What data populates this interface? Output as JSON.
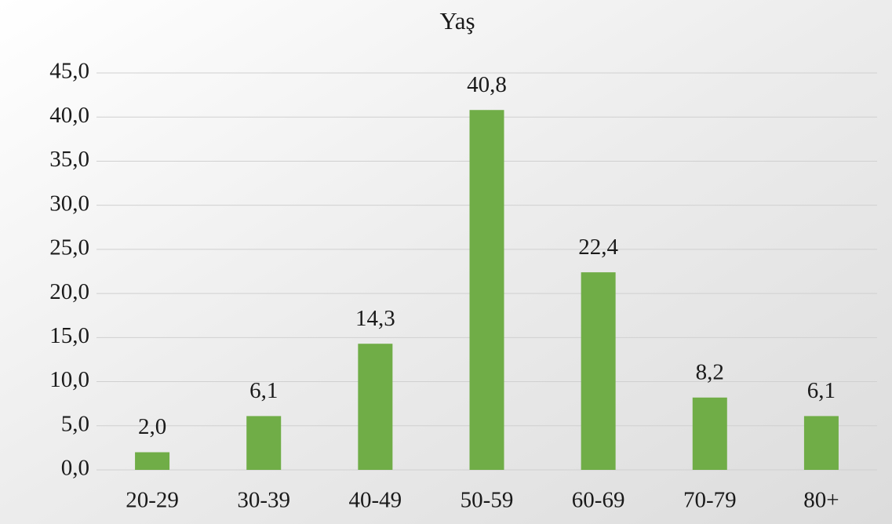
{
  "chart_data": {
    "type": "bar",
    "title": "Yaş",
    "categories": [
      "20-29",
      "30-39",
      "40-49",
      "50-59",
      "60-69",
      "70-79",
      "80+"
    ],
    "values": [
      2.0,
      6.1,
      14.3,
      40.8,
      22.4,
      8.2,
      6.1
    ],
    "value_labels": [
      "2,0",
      "6,1",
      "14,3",
      "40,8",
      "22,4",
      "8,2",
      "6,1"
    ],
    "color": "#70ad47",
    "ylim": [
      0,
      45
    ],
    "yticks": [
      {
        "value": 0,
        "label": "0,0"
      },
      {
        "value": 5,
        "label": "5,0"
      },
      {
        "value": 10,
        "label": "10,0"
      },
      {
        "value": 15,
        "label": "15,0"
      },
      {
        "value": 20,
        "label": "20,0"
      },
      {
        "value": 25,
        "label": "25,0"
      },
      {
        "value": 30,
        "label": "30,0"
      },
      {
        "value": 35,
        "label": "35,0"
      },
      {
        "value": 40,
        "label": "40,0"
      },
      {
        "value": 45,
        "label": "45,0"
      }
    ],
    "grid": true
  }
}
